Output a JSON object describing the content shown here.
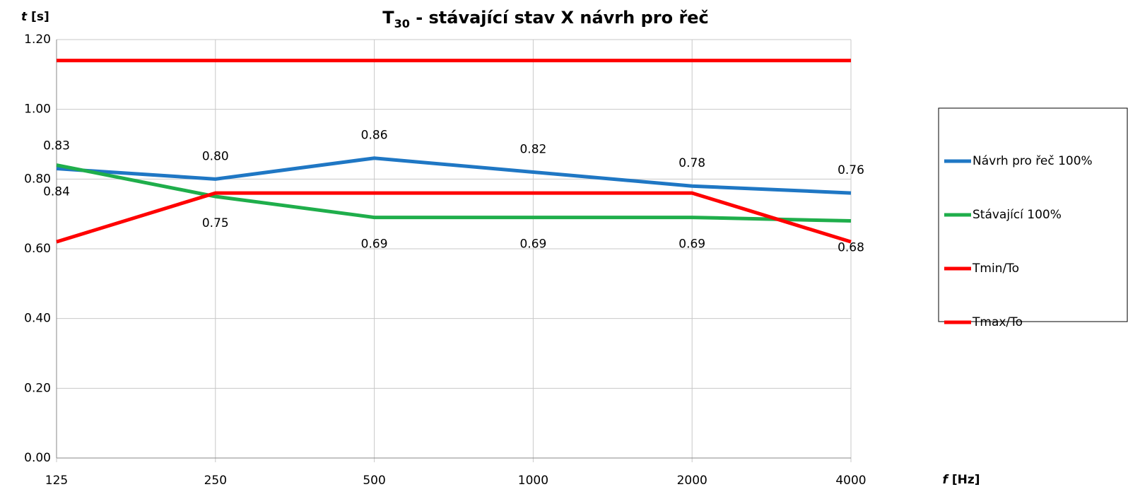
{
  "chart_data": {
    "type": "line",
    "title": [
      "T",
      "30",
      " - stávající stav X návrh pro řeč"
    ],
    "ylabel": [
      "t",
      " [s]"
    ],
    "xlabel": [
      "f",
      " [Hz]"
    ],
    "categories": [
      "125",
      "250",
      "500",
      "1000",
      "2000",
      "4000"
    ],
    "ylim": [
      0,
      1.2
    ],
    "yticks": [
      {
        "value": 0,
        "label": "0.00"
      },
      {
        "value": 0.2,
        "label": "0.20"
      },
      {
        "value": 0.4,
        "label": "0.40"
      },
      {
        "value": 0.6,
        "label": "0.60"
      },
      {
        "value": 0.8,
        "label": "0.80"
      },
      {
        "value": 1.0,
        "label": "1.00"
      },
      {
        "value": 1.2,
        "label": "1.20"
      }
    ],
    "grid": true,
    "legend": "right",
    "series": [
      {
        "name": "Návrh pro řeč 100%",
        "color": "#1f77c4",
        "values": [
          0.83,
          0.8,
          0.86,
          0.82,
          0.78,
          0.76
        ],
        "value_labels": [
          "0.83",
          "0.80",
          "0.86",
          "0.82",
          "0.78",
          "0.76"
        ],
        "label_side": "above"
      },
      {
        "name": "Stávající 100%",
        "color": "#1fae4b",
        "values": [
          0.84,
          0.75,
          0.69,
          0.69,
          0.69,
          0.68
        ],
        "value_labels": [
          "0.84",
          "0.75",
          "0.69",
          "0.69",
          "0.69",
          "0.68"
        ],
        "label_side": "below"
      },
      {
        "name": "Tmin/To",
        "color": "#ff0000",
        "values": [
          0.62,
          0.76,
          0.76,
          0.76,
          0.76,
          0.62
        ]
      },
      {
        "name": "Tmax/To",
        "color": "#ff0000",
        "values": [
          1.14,
          1.14,
          1.14,
          1.14,
          1.14,
          1.14
        ]
      }
    ]
  }
}
